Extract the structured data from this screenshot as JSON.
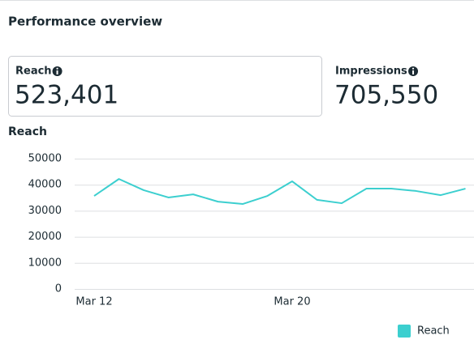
{
  "header": {
    "title": "Performance overview"
  },
  "metrics": [
    {
      "label": "Reach",
      "value": "523,401"
    },
    {
      "label": "Impressions",
      "value": "705,550"
    }
  ],
  "chart_data": {
    "type": "line",
    "title": "Reach",
    "categories": [
      "Mar 12",
      null,
      null,
      null,
      null,
      null,
      null,
      null,
      "Mar 20",
      null,
      null,
      null,
      null,
      null,
      null,
      null
    ],
    "series": [
      {
        "name": "Reach",
        "color": "#3ccfcf",
        "values": [
          35700,
          42200,
          37900,
          35100,
          36300,
          33500,
          32600,
          35700,
          41300,
          34200,
          32900,
          38500,
          38500,
          37600,
          36000,
          38500
        ]
      }
    ],
    "ylim": [
      0,
      50000
    ],
    "yticks": [
      0,
      10000,
      20000,
      30000,
      40000,
      50000
    ],
    "grid": true
  }
}
